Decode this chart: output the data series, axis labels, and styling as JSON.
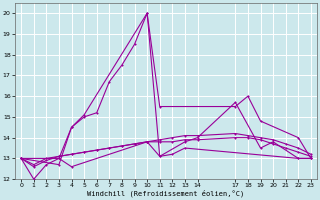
{
  "background_color": "#cce8ec",
  "grid_color": "#ffffff",
  "line_color": "#990099",
  "xlabel": "Windchill (Refroidissement éolien,°C)",
  "xlim": [
    -0.5,
    23.5
  ],
  "ylim": [
    12,
    20.5
  ],
  "x_ticks": [
    0,
    1,
    2,
    3,
    4,
    5,
    6,
    7,
    8,
    9,
    10,
    11,
    12,
    13,
    14,
    17,
    18,
    19,
    20,
    21,
    22,
    23
  ],
  "y_ticks": [
    12,
    13,
    14,
    15,
    16,
    17,
    18,
    19,
    20
  ],
  "series": [
    {
      "x": [
        0,
        1,
        2,
        3,
        4,
        5,
        6,
        7,
        8,
        9,
        10,
        11,
        12,
        13,
        22,
        23
      ],
      "y": [
        13,
        12,
        12.7,
        13,
        14.5,
        15,
        15.2,
        16.7,
        17.5,
        18.5,
        20,
        13.1,
        13.2,
        13.5,
        13,
        13
      ]
    },
    {
      "x": [
        0,
        3,
        4,
        5,
        10,
        11,
        17,
        18,
        19,
        22,
        23
      ],
      "y": [
        13,
        12.7,
        14.5,
        15.1,
        20,
        15.5,
        15.5,
        16,
        14.8,
        14,
        13
      ]
    },
    {
      "x": [
        0,
        3,
        4,
        10,
        11,
        13,
        14,
        17,
        19,
        20,
        22,
        23
      ],
      "y": [
        13,
        13,
        12.6,
        13.8,
        13.1,
        13.8,
        14.0,
        15.7,
        13.5,
        13.8,
        13,
        13
      ]
    },
    {
      "x": [
        0,
        1,
        2,
        3,
        4,
        5,
        6,
        7,
        8,
        9,
        10,
        11,
        12,
        13,
        14,
        17,
        18,
        19,
        20,
        21,
        22,
        23
      ],
      "y": [
        13,
        12.6,
        12.9,
        13.1,
        13.2,
        13.3,
        13.4,
        13.5,
        13.6,
        13.7,
        13.8,
        13.8,
        13.8,
        13.9,
        13.9,
        14.0,
        14.0,
        13.9,
        13.7,
        13.5,
        13.3,
        13.1
      ]
    },
    {
      "x": [
        0,
        1,
        2,
        3,
        4,
        5,
        6,
        7,
        8,
        9,
        10,
        11,
        12,
        13,
        14,
        17,
        18,
        19,
        20,
        21,
        22,
        23
      ],
      "y": [
        13,
        12.7,
        13.0,
        13.1,
        13.2,
        13.3,
        13.4,
        13.5,
        13.6,
        13.7,
        13.8,
        13.9,
        14.0,
        14.1,
        14.1,
        14.2,
        14.1,
        14.0,
        13.9,
        13.7,
        13.5,
        13.2
      ]
    }
  ]
}
